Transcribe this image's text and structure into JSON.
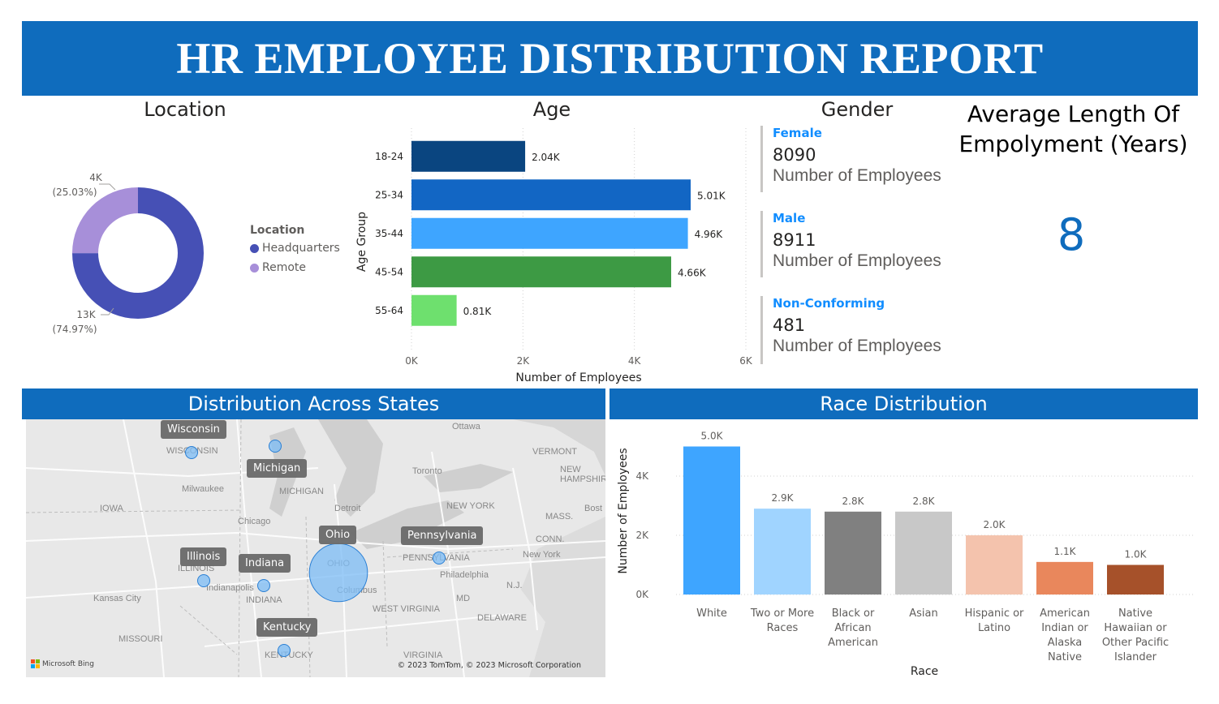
{
  "header": {
    "title": "HR EMPLOYEE DISTRIBUTION REPORT"
  },
  "location": {
    "title": "Location",
    "legend_title": "Location",
    "legend": [
      {
        "name": "Headquarters",
        "color": "#4650b5"
      },
      {
        "name": "Remote",
        "color": "#a78fd9"
      }
    ],
    "labels": {
      "remote_value": "4K",
      "remote_pct": "(25.03%)",
      "hq_value": "13K",
      "hq_pct": "(74.97%)"
    }
  },
  "age": {
    "title": "Age"
  },
  "gender": {
    "title": "Gender",
    "cards": [
      {
        "label": "Female",
        "value": "8090",
        "sub": "Number of Employees"
      },
      {
        "label": "Male",
        "value": "8911",
        "sub": "Number of Employees"
      },
      {
        "label": "Non-Conforming",
        "value": "481",
        "sub": "Number of Employees"
      }
    ]
  },
  "avg_length": {
    "title_line1": "Average Length Of",
    "title_line2": "Empolyment (Years)",
    "value": "8"
  },
  "states": {
    "title": "Distribution Across States",
    "labels": [
      "Wisconsin",
      "Michigan",
      "Ohio",
      "Pennsylvania",
      "Illinois",
      "Indiana",
      "Kentucky"
    ],
    "base_map_text": [
      "Ottawa",
      "WISCONSIN",
      "Milwaukee",
      "MICHIGAN",
      "IOWA",
      "Chicago",
      "Detroit",
      "Toronto",
      "NEW YORK",
      "VERMONT",
      "NEW HAMPSHIRE",
      "MASS.",
      "CONN.",
      "Bost",
      "New York",
      "PENNSYLVANIA",
      "Philadelphia",
      "ILLINOIS",
      "Indianapolis",
      "INDIANA",
      "OHIO",
      "Columbus",
      "MD",
      "DELAWARE",
      "Kansas City",
      "WEST VIRGINIA",
      "MISSOURI",
      "KENTUCKY",
      "VIRGINIA",
      "N.J."
    ],
    "attribution": "© 2023 TomTom, © 2023 Microsoft Corporation",
    "brand": "Microsoft Bing"
  },
  "race": {
    "title": "Race Distribution"
  },
  "chart_data": [
    {
      "type": "pie",
      "title": "Location",
      "categories": [
        "Headquarters",
        "Remote"
      ],
      "values": [
        74.97,
        25.03
      ],
      "value_labels": [
        "13K",
        "4K"
      ],
      "unit": "percent"
    },
    {
      "type": "bar",
      "orientation": "horizontal",
      "title": "Age",
      "categories": [
        "18-24",
        "25-34",
        "35-44",
        "45-54",
        "55-64"
      ],
      "values": [
        2.04,
        5.01,
        4.96,
        4.66,
        0.81
      ],
      "value_labels": [
        "2.04K",
        "5.01K",
        "4.96K",
        "4.66K",
        "0.81K"
      ],
      "colors": [
        "#0a4580",
        "#1266c4",
        "#3ea5ff",
        "#3d9a44",
        "#6ee06e"
      ],
      "xlabel": "Number of Employees",
      "ylabel": "Age Group",
      "xlim": [
        0,
        6
      ],
      "xticks": [
        "0K",
        "2K",
        "4K",
        "6K"
      ],
      "grid": true
    },
    {
      "type": "bar",
      "title": "Race Distribution",
      "categories": [
        "White",
        "Two or More Races",
        "Black or African American",
        "Asian",
        "Hispanic or Latino",
        "American Indian or Alaska Native",
        "Native Hawaiian or Other Pacific Islander"
      ],
      "category_lines": [
        [
          "White"
        ],
        [
          "Two or More",
          "Races"
        ],
        [
          "Black or",
          "African",
          "American"
        ],
        [
          "Asian"
        ],
        [
          "Hispanic or",
          "Latino"
        ],
        [
          "American",
          "Indian or",
          "Alaska",
          "Native"
        ],
        [
          "Native",
          "Hawaiian or",
          "Other Pacific",
          "Islander"
        ]
      ],
      "values": [
        5.0,
        2.9,
        2.8,
        2.8,
        2.0,
        1.1,
        1.0
      ],
      "value_labels": [
        "5.0K",
        "2.9K",
        "2.8K",
        "2.8K",
        "2.0K",
        "1.1K",
        "1.0K"
      ],
      "colors": [
        "#3ea5ff",
        "#a0d4ff",
        "#808080",
        "#c8c8c8",
        "#f4c3ad",
        "#e9875c",
        "#a6512a"
      ],
      "xlabel": "Race",
      "ylabel": "Number of Employees",
      "ylim": [
        0,
        5
      ],
      "yticks": [
        "0K",
        "2K",
        "4K"
      ],
      "grid": true
    },
    {
      "type": "scatter",
      "title": "Distribution Across States",
      "categories": [
        "Wisconsin",
        "Michigan",
        "Ohio",
        "Pennsylvania",
        "Illinois",
        "Indiana",
        "Kentucky"
      ],
      "relative_size": [
        1,
        1,
        6,
        1,
        1,
        1,
        1
      ]
    }
  ]
}
